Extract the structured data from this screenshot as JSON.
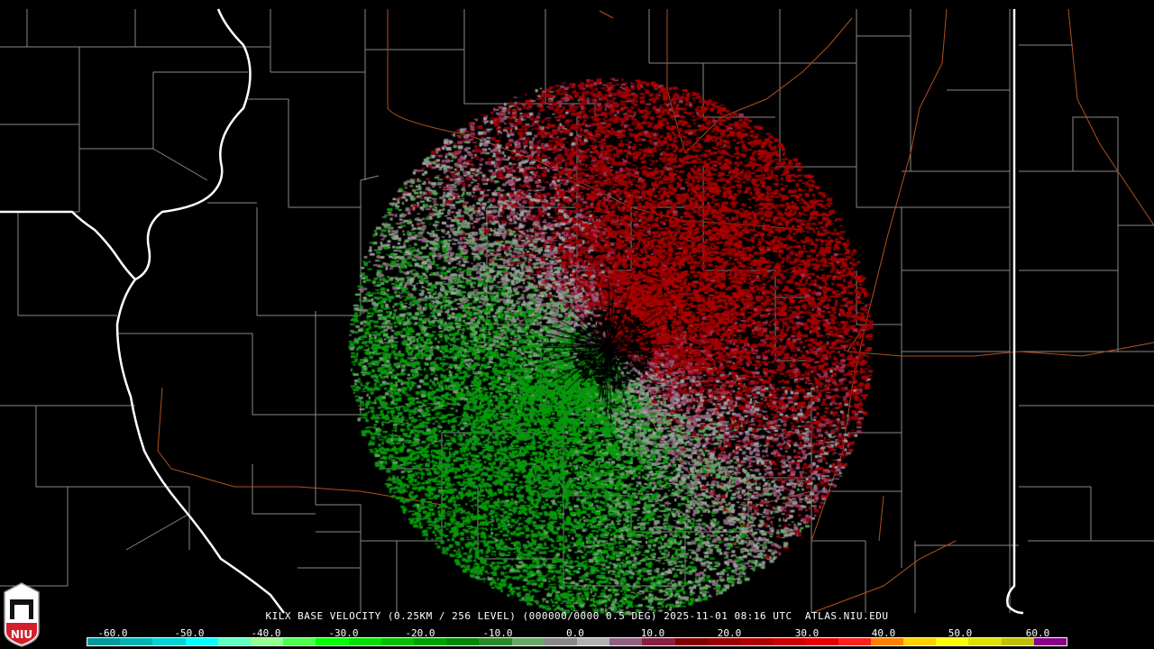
{
  "title": "KILX BASE VELOCITY (0.25KM / 256 LEVEL) (000000/0000 0.5 DEG) 2025-11-01 08:16 UTC  ATLAS.NIU.EDU",
  "logo_text": "NIU",
  "colorbar": {
    "labels": [
      "-60.0",
      "-50.0",
      "-40.0",
      "-30.0",
      "-20.0",
      "-10.0",
      "0.0",
      "10.0",
      "20.0",
      "30.0",
      "40.0",
      "50.0",
      "60.0"
    ],
    "colors": [
      "#009a9a",
      "#00b4b4",
      "#00d4d4",
      "#00ffff",
      "#5fffc0",
      "#90ff90",
      "#4cff4c",
      "#00ff00",
      "#00e000",
      "#00c000",
      "#00a000",
      "#008800",
      "#2a8a2a",
      "#6aa86a",
      "#888888",
      "#b0b0b0",
      "#906080",
      "#882040",
      "#800000",
      "#990000",
      "#b00000",
      "#cc0000",
      "#e80000",
      "#ff2020",
      "#ff8000",
      "#ffd000",
      "#ffff00",
      "#e0e000",
      "#c0c000",
      "#880088"
    ]
  },
  "colors": {
    "inbound": "#00a000",
    "outbound": "#b00000",
    "state_border": "#ffffff",
    "county_border": "#888888",
    "highway": "#b05020"
  }
}
